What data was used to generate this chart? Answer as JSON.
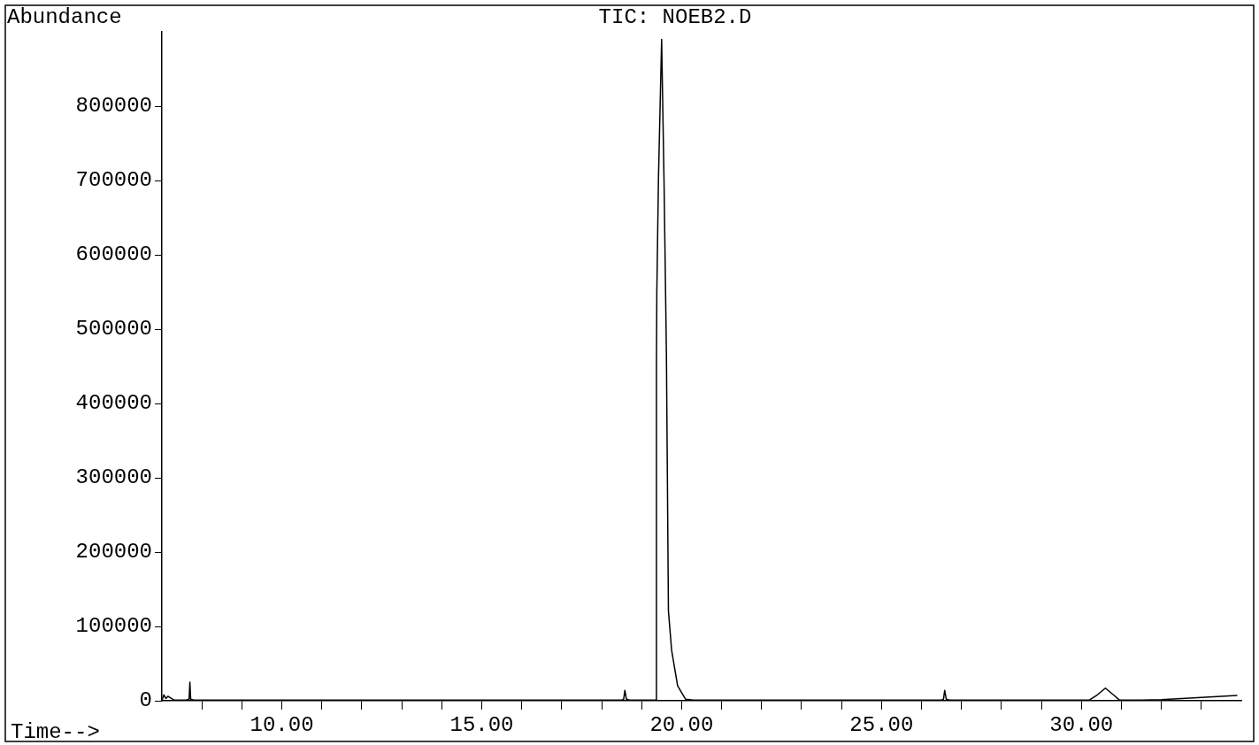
{
  "chart_data": {
    "type": "line",
    "title": "TIC: NOEB2.D",
    "xlabel": "Time-->",
    "ylabel": "Abundance",
    "series": [
      {
        "color": "#000000",
        "x": [
          7.0,
          7.05,
          7.1,
          7.15,
          7.3,
          7.6,
          7.68,
          7.7,
          7.72,
          7.8,
          9.0,
          12.0,
          15.0,
          18.5,
          18.55,
          18.58,
          18.62,
          18.7,
          19.3,
          19.36,
          19.37,
          19.38,
          19.42,
          19.5,
          19.56,
          19.62,
          19.67,
          19.75,
          19.9,
          20.1,
          20.3,
          22.0,
          26.5,
          26.55,
          26.58,
          26.62,
          26.7,
          29.0,
          30.2,
          30.4,
          30.6,
          30.8,
          30.95,
          31.5,
          32.0,
          32.5,
          33.0,
          33.5,
          33.9
        ],
        "values": [
          0,
          8000,
          3000,
          6000,
          1000,
          1000,
          2000,
          25000,
          2000,
          1000,
          1000,
          1000,
          1000,
          1000,
          2000,
          14000,
          2000,
          1000,
          1000,
          1000,
          450000,
          550000,
          700000,
          890000,
          700000,
          466000,
          121000,
          68000,
          20000,
          2000,
          1000,
          1000,
          1000,
          2000,
          14000,
          2000,
          1000,
          1000,
          1000,
          8000,
          17000,
          8000,
          1000,
          1000,
          1500,
          3000,
          4500,
          6000,
          7000
        ]
      }
    ],
    "xlim": [
      7,
      34
    ],
    "ylim": [
      0,
      900000
    ],
    "xticks": [
      {
        "value": 8,
        "label": null
      },
      {
        "value": 9,
        "label": null
      },
      {
        "value": 10,
        "label": "10.00"
      },
      {
        "value": 11,
        "label": null
      },
      {
        "value": 12,
        "label": null
      },
      {
        "value": 13,
        "label": null
      },
      {
        "value": 14,
        "label": null
      },
      {
        "value": 15,
        "label": "15.00"
      },
      {
        "value": 16,
        "label": null
      },
      {
        "value": 17,
        "label": null
      },
      {
        "value": 18,
        "label": null
      },
      {
        "value": 19,
        "label": null
      },
      {
        "value": 20,
        "label": "20.00"
      },
      {
        "value": 21,
        "label": null
      },
      {
        "value": 22,
        "label": null
      },
      {
        "value": 23,
        "label": null
      },
      {
        "value": 24,
        "label": null
      },
      {
        "value": 25,
        "label": "25.00"
      },
      {
        "value": 26,
        "label": null
      },
      {
        "value": 27,
        "label": null
      },
      {
        "value": 28,
        "label": null
      },
      {
        "value": 29,
        "label": null
      },
      {
        "value": 30,
        "label": "30.00"
      },
      {
        "value": 31,
        "label": null
      },
      {
        "value": 32,
        "label": null
      },
      {
        "value": 33,
        "label": null
      }
    ],
    "yticks": [
      0,
      100000,
      200000,
      300000,
      400000,
      500000,
      600000,
      700000,
      800000
    ],
    "grid": false,
    "legend": false,
    "marker": "none",
    "line_style": "solid"
  }
}
